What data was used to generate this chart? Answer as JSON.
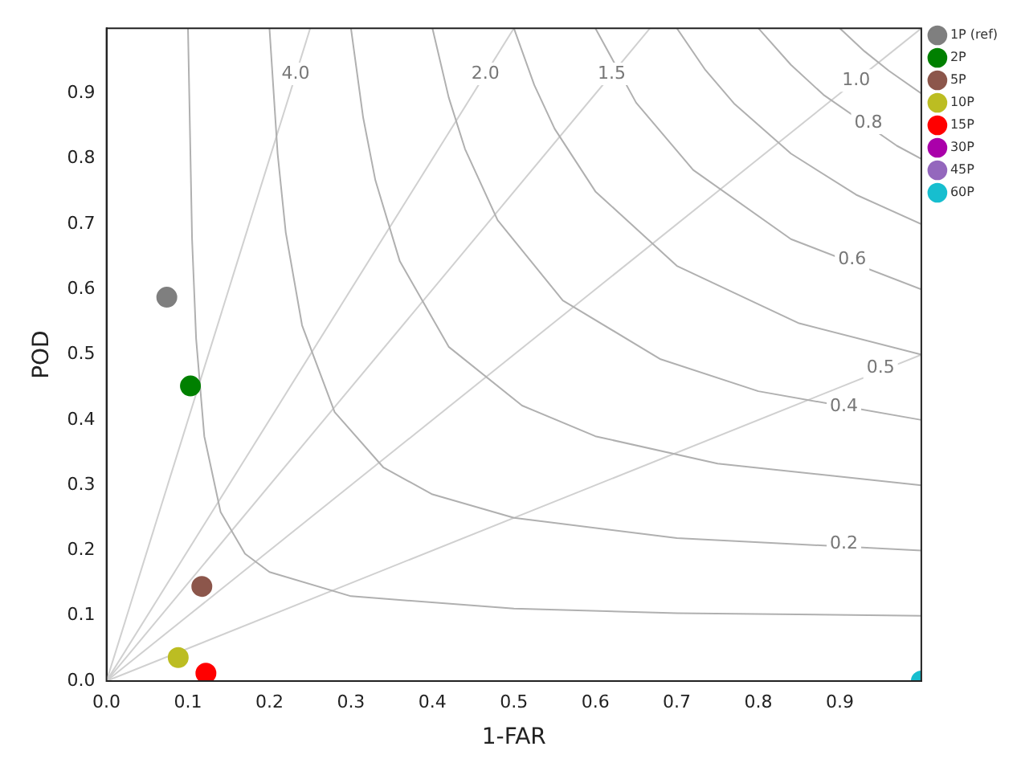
{
  "chart_data": {
    "type": "scatter",
    "xlabel": "1-FAR",
    "ylabel": "POD",
    "xlim": [
      0,
      1
    ],
    "ylim": [
      0,
      1
    ],
    "xticks": [
      {
        "value": 0,
        "label": "0.0"
      },
      {
        "value": 0.1,
        "label": "0.1"
      },
      {
        "value": 0.2,
        "label": "0.2"
      },
      {
        "value": 0.3,
        "label": "0.3"
      },
      {
        "value": 0.4,
        "label": "0.4"
      },
      {
        "value": 0.5,
        "label": "0.5"
      },
      {
        "value": 0.6,
        "label": "0.6"
      },
      {
        "value": 0.7,
        "label": "0.7"
      },
      {
        "value": 0.8,
        "label": "0.8"
      },
      {
        "value": 0.9,
        "label": "0.9"
      }
    ],
    "yticks": [
      {
        "value": 0,
        "label": "0.0"
      },
      {
        "value": 0.1,
        "label": "0.1"
      },
      {
        "value": 0.2,
        "label": "0.2"
      },
      {
        "value": 0.3,
        "label": "0.3"
      },
      {
        "value": 0.4,
        "label": "0.4"
      },
      {
        "value": 0.5,
        "label": "0.5"
      },
      {
        "value": 0.6,
        "label": "0.6"
      },
      {
        "value": 0.7,
        "label": "0.7"
      },
      {
        "value": 0.8,
        "label": "0.8"
      },
      {
        "value": 0.9,
        "label": "0.9"
      }
    ],
    "grid": false,
    "legend": "top right",
    "series": [
      {
        "type": "line",
        "color": "#b0b0b0",
        "x": [
          0.1,
          0.105,
          0.11,
          0.12,
          0.14,
          0.17,
          0.2,
          0.3,
          0.5,
          0.7,
          1.0
        ],
        "values": [
          1,
          0.677,
          0.524,
          0.375,
          0.259,
          0.195,
          0.167,
          0.13,
          0.111,
          0.104,
          0.1
        ]
      },
      {
        "type": "line",
        "color": "#b0b0b0",
        "x": [
          0.2,
          0.21,
          0.22,
          0.24,
          0.28,
          0.34,
          0.4,
          0.5,
          0.7,
          1.0
        ],
        "values": [
          1,
          0.808,
          0.687,
          0.545,
          0.412,
          0.327,
          0.286,
          0.25,
          0.219,
          0.2
        ]
      },
      {
        "type": "line",
        "color": "#b0b0b0",
        "x": [
          0.3,
          0.315,
          0.33,
          0.36,
          0.42,
          0.51,
          0.6,
          0.75,
          1.0
        ],
        "values": [
          1,
          0.863,
          0.767,
          0.643,
          0.512,
          0.422,
          0.375,
          0.333,
          0.3
        ]
      },
      {
        "type": "line",
        "color": "#b0b0b0",
        "x": [
          0.4,
          0.42,
          0.44,
          0.48,
          0.56,
          0.68,
          0.8,
          1.0
        ],
        "values": [
          1,
          0.894,
          0.815,
          0.706,
          0.583,
          0.493,
          0.444,
          0.4
        ]
      },
      {
        "type": "line",
        "color": "#b0b0b0",
        "x": [
          0.5,
          0.525,
          0.55,
          0.6,
          0.7,
          0.85,
          1.0
        ],
        "values": [
          1,
          0.913,
          0.846,
          0.75,
          0.636,
          0.548,
          0.5
        ]
      },
      {
        "type": "line",
        "color": "#b0b0b0",
        "x": [
          0.6,
          0.65,
          0.72,
          0.84,
          1.0
        ],
        "values": [
          1,
          0.886,
          0.783,
          0.677,
          0.6
        ]
      },
      {
        "type": "line",
        "color": "#b0b0b0",
        "x": [
          0.7,
          0.735,
          0.77,
          0.84,
          0.92,
          1.0
        ],
        "values": [
          1,
          0.936,
          0.885,
          0.808,
          0.745,
          0.7
        ]
      },
      {
        "type": "line",
        "color": "#b0b0b0",
        "x": [
          0.8,
          0.84,
          0.88,
          0.97,
          1.0
        ],
        "values": [
          1,
          0.944,
          0.898,
          0.82,
          0.8
        ]
      },
      {
        "type": "line",
        "color": "#b0b0b0",
        "x": [
          0.9,
          0.93,
          0.96,
          1.0
        ],
        "values": [
          1,
          0.965,
          0.935,
          0.9
        ]
      },
      {
        "type": "line",
        "color": "#d0d0d0",
        "x": [
          0,
          0.25
        ],
        "values": [
          0,
          1
        ]
      },
      {
        "type": "line",
        "color": "#d0d0d0",
        "x": [
          0,
          0.5
        ],
        "values": [
          0,
          1
        ]
      },
      {
        "type": "line",
        "color": "#d0d0d0",
        "x": [
          0,
          0.667
        ],
        "values": [
          0,
          1
        ]
      },
      {
        "type": "line",
        "color": "#d0d0d0",
        "x": [
          0,
          1
        ],
        "values": [
          0,
          1
        ]
      },
      {
        "type": "line",
        "color": "#d0d0d0",
        "x": [
          0,
          1
        ],
        "values": [
          0,
          0.5
        ]
      },
      {
        "name": "1P (ref)",
        "color": "#7f7f7f",
        "marker": "circle",
        "x": [
          0.074
        ],
        "values": [
          0.588
        ]
      },
      {
        "name": "2P",
        "color": "#008000",
        "marker": "circle",
        "x": [
          0.103
        ],
        "values": [
          0.452
        ]
      },
      {
        "name": "5P",
        "color": "#8c564b",
        "marker": "circle",
        "x": [
          0.117
        ],
        "values": [
          0.145
        ]
      },
      {
        "name": "10P",
        "color": "#bcbd22",
        "marker": "circle",
        "x": [
          0.088
        ],
        "values": [
          0.036
        ]
      },
      {
        "name": "15P",
        "color": "#ff0000",
        "marker": "circle",
        "x": [
          0.122
        ],
        "values": [
          0.012
        ]
      },
      {
        "name": "30P",
        "color": "#aa00aa",
        "marker": "circle",
        "x": [
          null
        ],
        "values": [
          null
        ]
      },
      {
        "name": "45P",
        "color": "#9467bd",
        "marker": "circle",
        "x": [
          null
        ],
        "values": [
          null
        ]
      },
      {
        "name": "60P",
        "color": "#17becf",
        "marker": "circle",
        "x": [
          1.0
        ],
        "values": [
          0.0
        ]
      }
    ],
    "annotations": [
      {
        "text": "4.0",
        "x": 0.232,
        "y": 0.93
      },
      {
        "text": "2.0",
        "x": 0.465,
        "y": 0.93
      },
      {
        "text": "1.5",
        "x": 0.62,
        "y": 0.93
      },
      {
        "text": "1.0",
        "x": 0.92,
        "y": 0.92
      },
      {
        "text": "0.8",
        "x": 0.935,
        "y": 0.855
      },
      {
        "text": "0.6",
        "x": 0.915,
        "y": 0.645
      },
      {
        "text": "0.5",
        "x": 0.95,
        "y": 0.48
      },
      {
        "text": "0.4",
        "x": 0.905,
        "y": 0.42
      },
      {
        "text": "0.2",
        "x": 0.905,
        "y": 0.21
      }
    ]
  }
}
